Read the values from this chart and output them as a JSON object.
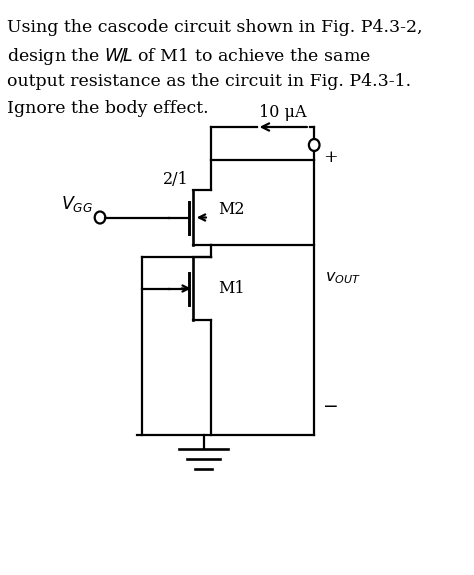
{
  "background_color": "#ffffff",
  "line_color": "#000000",
  "text_color": "#000000",
  "font_size_body": 12.5,
  "font_size_labels": 11.5,
  "current_label": "10 μA",
  "ratio_label": "2/1",
  "m1_label": "M1",
  "m2_label": "M2",
  "vgg_label": "$V_{GG}$",
  "vout_label": "$v_{OUT}$",
  "plus_label": "+",
  "minus_label": "−",
  "body_lines": [
    "Using the cascode circuit shown in Fig. P4.3-2,",
    "design the $W\\!/\\!L$ of M1 to achieve the same",
    "output resistance as the circuit in Fig. P4.3-1.",
    "Ignore the body effect."
  ]
}
